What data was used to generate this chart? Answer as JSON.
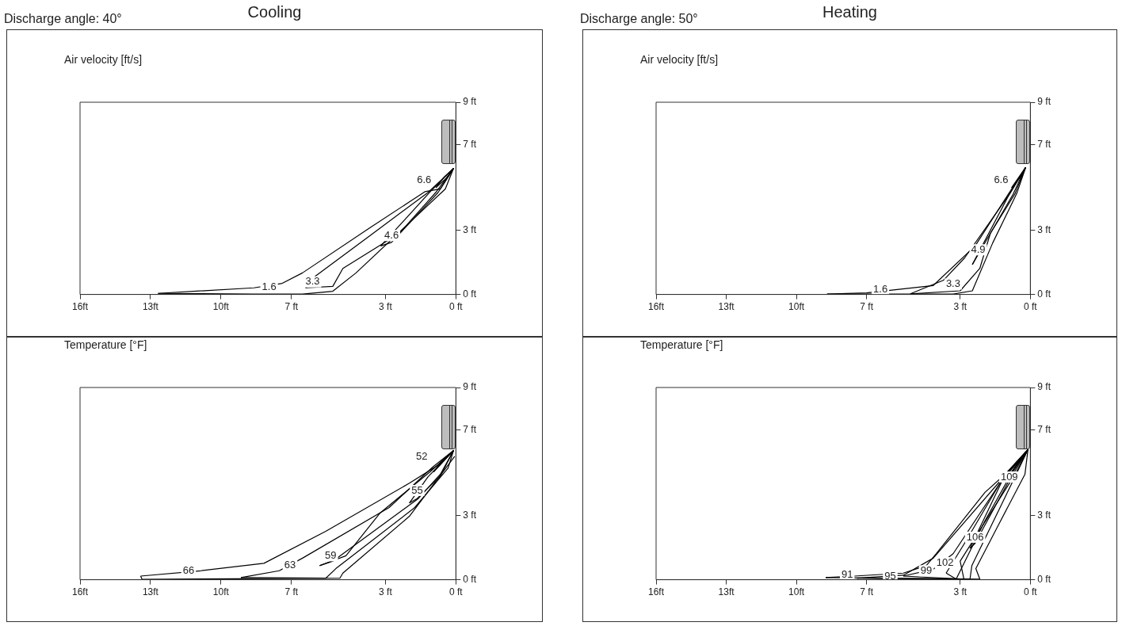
{
  "chart_data": [
    {
      "type": "line",
      "title": "Cooling",
      "subtitle": "Discharge angle: 40°",
      "ylabel": "Air velocity [ft/s]",
      "marker": "none",
      "grid": false,
      "xlim": [
        16,
        0
      ],
      "xticks": [
        {
          "value": 16,
          "label": "16ft"
        },
        {
          "value": 13,
          "label": "13ft"
        },
        {
          "value": 10,
          "label": "10ft"
        },
        {
          "value": 7,
          "label": "7 ft"
        },
        {
          "value": 3,
          "label": "3 ft"
        },
        {
          "value": 0,
          "label": "0 ft"
        }
      ],
      "ylim": [
        0,
        9
      ],
      "yticks": [
        {
          "value": 0,
          "label": "0 ft"
        },
        {
          "value": 3,
          "label": "3 ft"
        },
        {
          "value": 7,
          "label": "7 ft"
        },
        {
          "value": 9,
          "label": "9 ft"
        }
      ],
      "series": [
        {
          "color": "#000000",
          "x": [
            0.1,
            0.5,
            0.85
          ],
          "values": [
            5.9,
            5.5,
            5.0
          ]
        },
        {
          "color": "#000000",
          "x": [
            0.85,
            0.4,
            0.1
          ],
          "values": [
            5.0,
            5.45,
            5.9
          ]
        },
        {
          "color": "#000000",
          "x": [
            0.1,
            1.09,
            3.2
          ],
          "values": [
            5.9,
            4.81,
            2.27
          ]
        },
        {
          "color": "#000000",
          "x": [
            3.2,
            2.74,
            0.76,
            0.1
          ],
          "values": [
            2.27,
            2.44,
            4.77,
            5.9
          ]
        },
        {
          "color": "#000000",
          "x": [
            0.1,
            1.19,
            3.65,
            5.97,
            6.4
          ],
          "values": [
            5.9,
            4.77,
            2.76,
            0.87,
            0.31
          ]
        },
        {
          "color": "#000000",
          "x": [
            6.4,
            5.24,
            4.81,
            2.41,
            0.86,
            0.1
          ],
          "values": [
            0.31,
            0.38,
            1.22,
            2.86,
            4.77,
            5.9
          ]
        },
        {
          "color": "#000000",
          "x": [
            0.1,
            0.66,
            1.32,
            3.65,
            6.53,
            7.39,
            8.6,
            12.68
          ],
          "values": [
            5.9,
            4.94,
            4.81,
            3.13,
            1.01,
            0.52,
            0.31,
            0.05
          ]
        },
        {
          "color": "#000000",
          "x": [
            12.68,
            8.6,
            6.53,
            5.24,
            4.25,
            0.45,
            0.1
          ],
          "values": [
            0.05,
            0.02,
            0.02,
            0.15,
            1.01,
            4.94,
            5.9
          ]
        }
      ],
      "annotations": [
        {
          "text": "1.6",
          "x": 7.95,
          "y": 0.35
        },
        {
          "text": "3.3",
          "x": 6.1,
          "y": 0.59
        },
        {
          "text": "4.6",
          "x": 2.74,
          "y": 2.76
        },
        {
          "text": "6.6",
          "x": 1.35,
          "y": 5.35
        }
      ]
    },
    {
      "type": "line",
      "title": "Heating",
      "subtitle": "Discharge angle: 50°",
      "ylabel": "Air velocity [ft/s]",
      "marker": "none",
      "grid": false,
      "xlim": [
        16,
        0
      ],
      "xticks": [
        {
          "value": 16,
          "label": "16ft"
        },
        {
          "value": 13,
          "label": "13ft"
        },
        {
          "value": 10,
          "label": "10ft"
        },
        {
          "value": 7,
          "label": "7 ft"
        },
        {
          "value": 3,
          "label": "3 ft"
        },
        {
          "value": 0,
          "label": "0 ft"
        }
      ],
      "ylim": [
        0,
        9
      ],
      "yticks": [
        {
          "value": 0,
          "label": "0 ft"
        },
        {
          "value": 3,
          "label": "3 ft"
        },
        {
          "value": 7,
          "label": "7 ft"
        },
        {
          "value": 9,
          "label": "9 ft"
        }
      ],
      "series": [
        {
          "color": "#000000",
          "x": [
            0.2,
            0.45,
            0.8
          ],
          "values": [
            5.95,
            5.45,
            5.0
          ]
        },
        {
          "color": "#000000",
          "x": [
            0.8,
            0.55,
            0.2
          ],
          "values": [
            5.0,
            5.4,
            5.95
          ]
        },
        {
          "color": "#000000",
          "x": [
            0.2,
            0.9,
            2.48
          ],
          "values": [
            5.95,
            4.69,
            1.4
          ]
        },
        {
          "color": "#000000",
          "x": [
            2.48,
            2.26,
            0.74,
            0.2
          ],
          "values": [
            1.4,
            1.81,
            4.69,
            5.95
          ]
        },
        {
          "color": "#000000",
          "x": [
            0.2,
            0.87,
            2.81,
            3.72,
            5.13
          ],
          "values": [
            5.95,
            4.73,
            1.71,
            0.66,
            0.03
          ]
        },
        {
          "color": "#000000",
          "x": [
            5.13,
            3.0,
            2.16,
            1.71,
            0.65,
            0.2
          ],
          "values": [
            0.03,
            0.17,
            1.22,
            2.86,
            4.73,
            5.95
          ]
        },
        {
          "color": "#000000",
          "x": [
            0.2,
            0.9,
            2.36,
            4.15,
            7.0,
            8.69
          ],
          "values": [
            5.95,
            4.77,
            2.27,
            0.42,
            0.07,
            0.02
          ]
        },
        {
          "color": "#000000",
          "x": [
            8.69,
            3.3,
            2.48,
            1.61,
            0.58,
            0.2
          ],
          "values": [
            0.02,
            0.02,
            0.17,
            2.41,
            4.73,
            5.95
          ]
        }
      ],
      "annotations": [
        {
          "text": "1.6",
          "x": 6.41,
          "y": 0.24
        },
        {
          "text": "3.3",
          "x": 3.3,
          "y": 0.49
        },
        {
          "text": "4.9",
          "x": 2.23,
          "y": 2.09
        },
        {
          "text": "6.6",
          "x": 1.25,
          "y": 5.35
        }
      ]
    },
    {
      "type": "line",
      "ylabel": "Temperature [°F]",
      "marker": "none",
      "grid": false,
      "xlim": [
        16,
        0
      ],
      "xticks": [
        {
          "value": 16,
          "label": "16ft"
        },
        {
          "value": 13,
          "label": "13ft"
        },
        {
          "value": 10,
          "label": "10ft"
        },
        {
          "value": 7,
          "label": "7 ft"
        },
        {
          "value": 3,
          "label": "3 ft"
        },
        {
          "value": 0,
          "label": "0 ft"
        }
      ],
      "ylim": [
        0,
        9
      ],
      "yticks": [
        {
          "value": 0,
          "label": "0 ft"
        },
        {
          "value": 3,
          "label": "3 ft"
        },
        {
          "value": 7,
          "label": "7 ft"
        },
        {
          "value": 9,
          "label": "9 ft"
        }
      ],
      "series": [
        {
          "color": "#000000",
          "x": [
            0.1,
            0.5,
            0.95
          ],
          "values": [
            6.05,
            5.6,
            5.05
          ]
        },
        {
          "color": "#000000",
          "x": [
            0.95,
            0.6,
            0.1
          ],
          "values": [
            5.05,
            5.45,
            6.05
          ]
        },
        {
          "color": "#000000",
          "x": [
            0.1,
            1.19,
            1.98
          ],
          "values": [
            6.05,
            4.81,
            3.59
          ]
        },
        {
          "color": "#000000",
          "x": [
            1.98,
            1.65,
            0.66,
            0.1
          ],
          "values": [
            3.59,
            3.8,
            4.85,
            6.05
          ]
        },
        {
          "color": "#000000",
          "x": [
            0.1,
            1.09,
            3.22,
            4.68,
            5.8
          ],
          "values": [
            6.05,
            5.06,
            3.13,
            1.12,
            0.66
          ]
        },
        {
          "color": "#000000",
          "x": [
            5.8,
            5.24,
            1.6,
            0.66,
            0.1
          ],
          "values": [
            0.66,
            0.87,
            3.8,
            4.94,
            6.05
          ]
        },
        {
          "color": "#000000",
          "x": [
            0.1,
            0.99,
            2.84,
            6.53,
            7.52,
            9.15
          ],
          "values": [
            6.05,
            5.27,
            3.38,
            1.01,
            0.42,
            0.1
          ]
        },
        {
          "color": "#000000",
          "x": [
            9.15,
            5.54,
            5.11,
            1.75,
            0.33,
            0.1
          ],
          "values": [
            0.1,
            0.07,
            0.52,
            3.38,
            5.23,
            6.05
          ]
        },
        {
          "color": "#000000",
          "x": [
            0.1,
            0.76,
            1.98,
            5.54,
            8.17,
            10.86,
            13.42
          ],
          "values": [
            6.05,
            5.36,
            4.52,
            2.27,
            0.77,
            0.42,
            0.17
          ]
        },
        {
          "color": "#000000",
          "x": [
            13.42,
            13.36,
            4.94,
            4.81,
            1.98,
            0.05
          ],
          "values": [
            0.17,
            0.02,
            0.07,
            0.31,
            2.97,
            5.78
          ]
        }
      ],
      "annotations": [
        {
          "text": "66",
          "x": 11.38,
          "y": 0.42
        },
        {
          "text": "63",
          "x": 7.06,
          "y": 0.66
        },
        {
          "text": "59",
          "x": 5.33,
          "y": 1.12
        },
        {
          "text": "55",
          "x": 1.65,
          "y": 4.18
        },
        {
          "text": "52",
          "x": 1.45,
          "y": 5.75
        }
      ]
    },
    {
      "type": "line",
      "ylabel": "Temperature [°F]",
      "marker": "none",
      "grid": false,
      "xlim": [
        16,
        0
      ],
      "xticks": [
        {
          "value": 16,
          "label": "16ft"
        },
        {
          "value": 13,
          "label": "13ft"
        },
        {
          "value": 10,
          "label": "10ft"
        },
        {
          "value": 7,
          "label": "7 ft"
        },
        {
          "value": 3,
          "label": "3 ft"
        },
        {
          "value": 0,
          "label": "0 ft"
        }
      ],
      "ylim": [
        0,
        9
      ],
      "yticks": [
        {
          "value": 0,
          "label": "0 ft"
        },
        {
          "value": 3,
          "label": "3 ft"
        },
        {
          "value": 7,
          "label": "7 ft"
        },
        {
          "value": 9,
          "label": "9 ft"
        }
      ],
      "series": [
        {
          "color": "#000000",
          "x": [
            0.1,
            0.45,
            0.8
          ],
          "values": [
            6.1,
            5.6,
            5.05
          ]
        },
        {
          "color": "#000000",
          "x": [
            0.8,
            0.5,
            0.1
          ],
          "values": [
            5.05,
            5.5,
            6.1
          ]
        },
        {
          "color": "#000000",
          "x": [
            0.1,
            1.2,
            2.58
          ],
          "values": [
            6.1,
            4.64,
            1.47
          ]
        },
        {
          "color": "#000000",
          "x": [
            2.58,
            2.36,
            0.97,
            0.1
          ],
          "values": [
            1.47,
            1.71,
            4.52,
            6.1
          ]
        },
        {
          "color": "#000000",
          "x": [
            0.1,
            1.07,
            2.81,
            3.6
          ],
          "values": [
            6.1,
            4.94,
            1.71,
            0.31
          ]
        },
        {
          "color": "#000000",
          "x": [
            3.6,
            3.17,
            1.94,
            0.87,
            0.1
          ],
          "values": [
            0.31,
            0.03,
            2.76,
            4.85,
            6.1
          ]
        },
        {
          "color": "#000000",
          "x": [
            0.1,
            0.97,
            3.3,
            4.15,
            5.43
          ],
          "values": [
            6.1,
            5.06,
            1.22,
            0.49,
            0.17
          ]
        },
        {
          "color": "#000000",
          "x": [
            5.43,
            2.84,
            3.0,
            0.65,
            0.1
          ],
          "values": [
            0.17,
            0.03,
            0.87,
            4.94,
            6.1
          ]
        },
        {
          "color": "#000000",
          "x": [
            0.1,
            0.81,
            4.15,
            5.43,
            7.41
          ],
          "values": [
            6.1,
            5.23,
            1.01,
            0.21,
            0.07
          ]
        },
        {
          "color": "#000000",
          "x": [
            7.41,
            2.58,
            2.5,
            0.55,
            0.1
          ],
          "values": [
            0.07,
            0.03,
            0.66,
            5.06,
            6.1
          ]
        },
        {
          "color": "#000000",
          "x": [
            0.1,
            0.65,
            1.94,
            4.02,
            4.45,
            5.43,
            7.51,
            8.75
          ],
          "values": [
            6.1,
            5.36,
            4.09,
            1.22,
            0.66,
            0.31,
            0.17,
            0.1
          ]
        },
        {
          "color": "#000000",
          "x": [
            8.75,
            2.16,
            2.33,
            1.39,
            0.23,
            0.1
          ],
          "values": [
            0.1,
            0.03,
            0.52,
            2.51,
            4.94,
            6.1
          ]
        }
      ],
      "annotations": [
        {
          "text": "91",
          "x": 7.83,
          "y": 0.24
        },
        {
          "text": "95",
          "x": 5.99,
          "y": 0.14
        },
        {
          "text": "99",
          "x": 4.45,
          "y": 0.42
        },
        {
          "text": "102",
          "x": 3.65,
          "y": 0.8
        },
        {
          "text": "106",
          "x": 2.36,
          "y": 1.99
        },
        {
          "text": "109",
          "x": 0.9,
          "y": 4.81
        }
      ]
    }
  ]
}
